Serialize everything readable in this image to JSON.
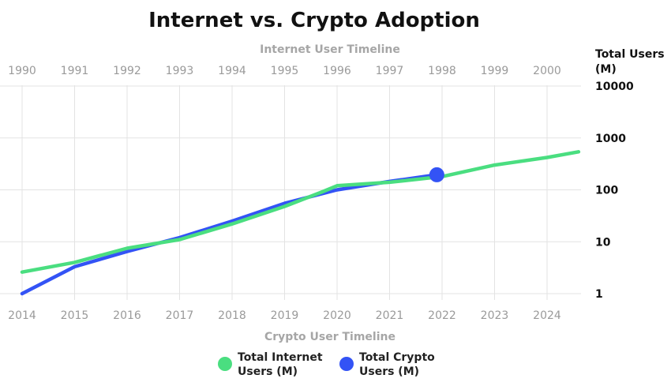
{
  "chart_data": {
    "type": "line",
    "title": "Internet vs. Crypto Adoption",
    "x_top_label": "Internet User Timeline",
    "x_top_ticks": [
      "1990",
      "1991",
      "1992",
      "1993",
      "1994",
      "1995",
      "1996",
      "1997",
      "1998",
      "1999",
      "2000"
    ],
    "x_bottom_label": "Crypto User Timeline",
    "x_bottom_ticks": [
      "2014",
      "2015",
      "2016",
      "2017",
      "2018",
      "2019",
      "2020",
      "2021",
      "2022",
      "2023",
      "2024"
    ],
    "ylabel_line1": "Total Users",
    "ylabel_line2": "(M)",
    "yscale": "log",
    "ylim": [
      1,
      10000
    ],
    "y_ticks": [
      "1",
      "10",
      "100",
      "1000",
      "10000"
    ],
    "grid": true,
    "legend_position": "bottom-center",
    "series": [
      {
        "name_line1": "Total Internet",
        "name_line2": "Users (M)",
        "color": "#4ade80",
        "x": [
          1990,
          1991,
          1992,
          1993,
          1994,
          1995,
          1995.7,
          1996,
          1997,
          1998,
          1999,
          2000,
          2000.6
        ],
        "values": [
          2.6,
          4,
          7.5,
          11,
          22,
          48,
          90,
          120,
          140,
          180,
          300,
          420,
          540
        ]
      },
      {
        "name_line1": "Total Crypto",
        "name_line2": "Users (M)",
        "color": "#3353f5",
        "x": [
          2014,
          2015,
          2016,
          2017,
          2018,
          2019,
          2020,
          2021,
          2021.9
        ],
        "values": [
          1,
          3.3,
          6.5,
          12,
          25,
          55,
          100,
          145,
          195
        ]
      }
    ],
    "highlight_point": {
      "x": 2021.9,
      "value": 195,
      "series": "Total Crypto"
    }
  }
}
